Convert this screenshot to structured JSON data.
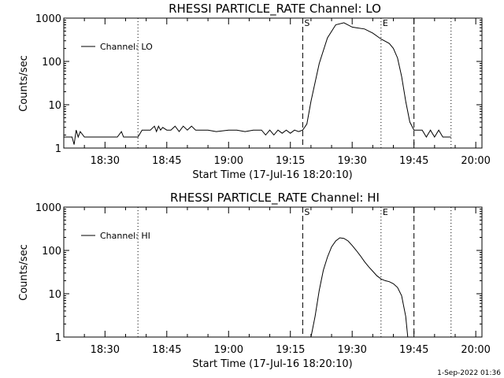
{
  "footer": {
    "timestamp": "1-Sep-2022 01:36"
  },
  "chart_data": [
    {
      "type": "line",
      "title": "RHESSI PARTICLE_RATE Channel: LO",
      "xlabel": "Start Time (17-Jul-16 18:20:10)",
      "ylabel": "Counts/sec",
      "y_scale": "log",
      "ylim": [
        1,
        1000
      ],
      "y_ticks": [
        "1",
        "10",
        "100",
        "1000"
      ],
      "x_ticks": [
        "18:30",
        "18:45",
        "19:00",
        "19:15",
        "19:30",
        "19:45",
        "20:00"
      ],
      "legend": {
        "placement": "top-left",
        "entries": [
          {
            "label": "Channel: LO"
          }
        ]
      },
      "markers": [
        {
          "time": "18:38",
          "style": "dotted",
          "label": ""
        },
        {
          "time": "19:18",
          "style": "dashed",
          "label": "S"
        },
        {
          "time": "19:37",
          "style": "dotted",
          "label": "E"
        },
        {
          "time": "19:45",
          "style": "dashed",
          "label": ""
        },
        {
          "time": "19:54",
          "style": "dotted",
          "label": ""
        }
      ],
      "series": [
        {
          "name": "Channel: LO",
          "x": [
            "18:20",
            "18:22",
            "18:22.5",
            "18:23",
            "18:23.5",
            "18:24",
            "18:25",
            "18:33",
            "18:34",
            "18:34.5",
            "18:38",
            "18:39",
            "18:41",
            "18:42",
            "18:42.5",
            "18:43",
            "18:43.5",
            "18:44",
            "18:45",
            "18:46",
            "18:47",
            "18:48",
            "18:49",
            "18:50",
            "18:51",
            "18:52",
            "18:55",
            "18:57",
            "19:00",
            "19:02",
            "19:04",
            "19:06",
            "19:08",
            "19:09",
            "19:10",
            "19:11",
            "19:12",
            "19:13",
            "19:14",
            "19:15",
            "19:16",
            "19:17",
            "19:18",
            "19:19",
            "19:20",
            "19:22",
            "19:24",
            "19:26",
            "19:28",
            "19:30",
            "19:31",
            "19:33",
            "19:35",
            "19:37",
            "19:39",
            "19:40",
            "19:41",
            "19:42",
            "19:43",
            "19:44",
            "19:45",
            "19:47",
            "19:48",
            "19:49",
            "19:50",
            "19:51",
            "19:52",
            "19:53",
            "19:54"
          ],
          "y": [
            1.8,
            1.8,
            1.2,
            2.6,
            1.8,
            2.4,
            1.8,
            1.8,
            2.4,
            1.8,
            1.8,
            2.6,
            2.6,
            3.2,
            2.4,
            3.2,
            2.6,
            3.0,
            2.6,
            2.6,
            3.2,
            2.4,
            3.2,
            2.6,
            3.2,
            2.6,
            2.6,
            2.4,
            2.6,
            2.6,
            2.4,
            2.6,
            2.6,
            2.0,
            2.6,
            2.0,
            2.6,
            2.2,
            2.6,
            2.2,
            2.6,
            2.4,
            2.6,
            3.6,
            12,
            90,
            350,
            700,
            780,
            620,
            600,
            560,
            450,
            330,
            260,
            200,
            120,
            45,
            12,
            4,
            2.6,
            2.6,
            1.8,
            2.6,
            1.8,
            2.6,
            1.8,
            1.8,
            1.8
          ]
        }
      ]
    },
    {
      "type": "line",
      "title": "RHESSI PARTICLE_RATE Channel: HI",
      "xlabel": "Start Time (17-Jul-16 18:20:10)",
      "ylabel": "Counts/sec",
      "y_scale": "log",
      "ylim": [
        1,
        1000
      ],
      "y_ticks": [
        "1",
        "10",
        "100",
        "1000"
      ],
      "x_ticks": [
        "18:30",
        "18:45",
        "19:00",
        "19:15",
        "19:30",
        "19:45",
        "20:00"
      ],
      "legend": {
        "placement": "top-left",
        "entries": [
          {
            "label": "Channel: HI"
          }
        ]
      },
      "markers": [
        {
          "time": "18:38",
          "style": "dotted",
          "label": ""
        },
        {
          "time": "19:18",
          "style": "dashed",
          "label": "S"
        },
        {
          "time": "19:37",
          "style": "dotted",
          "label": "E"
        },
        {
          "time": "19:45",
          "style": "dashed",
          "label": ""
        },
        {
          "time": "19:54",
          "style": "dotted",
          "label": ""
        }
      ],
      "series": [
        {
          "name": "Channel: HI",
          "x": [
            "19:20",
            "19:21",
            "19:22",
            "19:23",
            "19:24",
            "19:25",
            "19:26",
            "19:27",
            "19:28",
            "19:29",
            "19:30",
            "19:31",
            "19:32",
            "19:33",
            "19:34",
            "19:35",
            "19:36",
            "19:37",
            "19:38",
            "19:39",
            "19:40",
            "19:41",
            "19:42",
            "19:43",
            "19:43.5"
          ],
          "y": [
            1,
            3,
            12,
            35,
            70,
            120,
            165,
            195,
            190,
            165,
            130,
            100,
            75,
            55,
            42,
            33,
            26,
            22,
            20,
            19,
            17,
            14,
            9,
            3,
            1
          ]
        }
      ]
    }
  ]
}
